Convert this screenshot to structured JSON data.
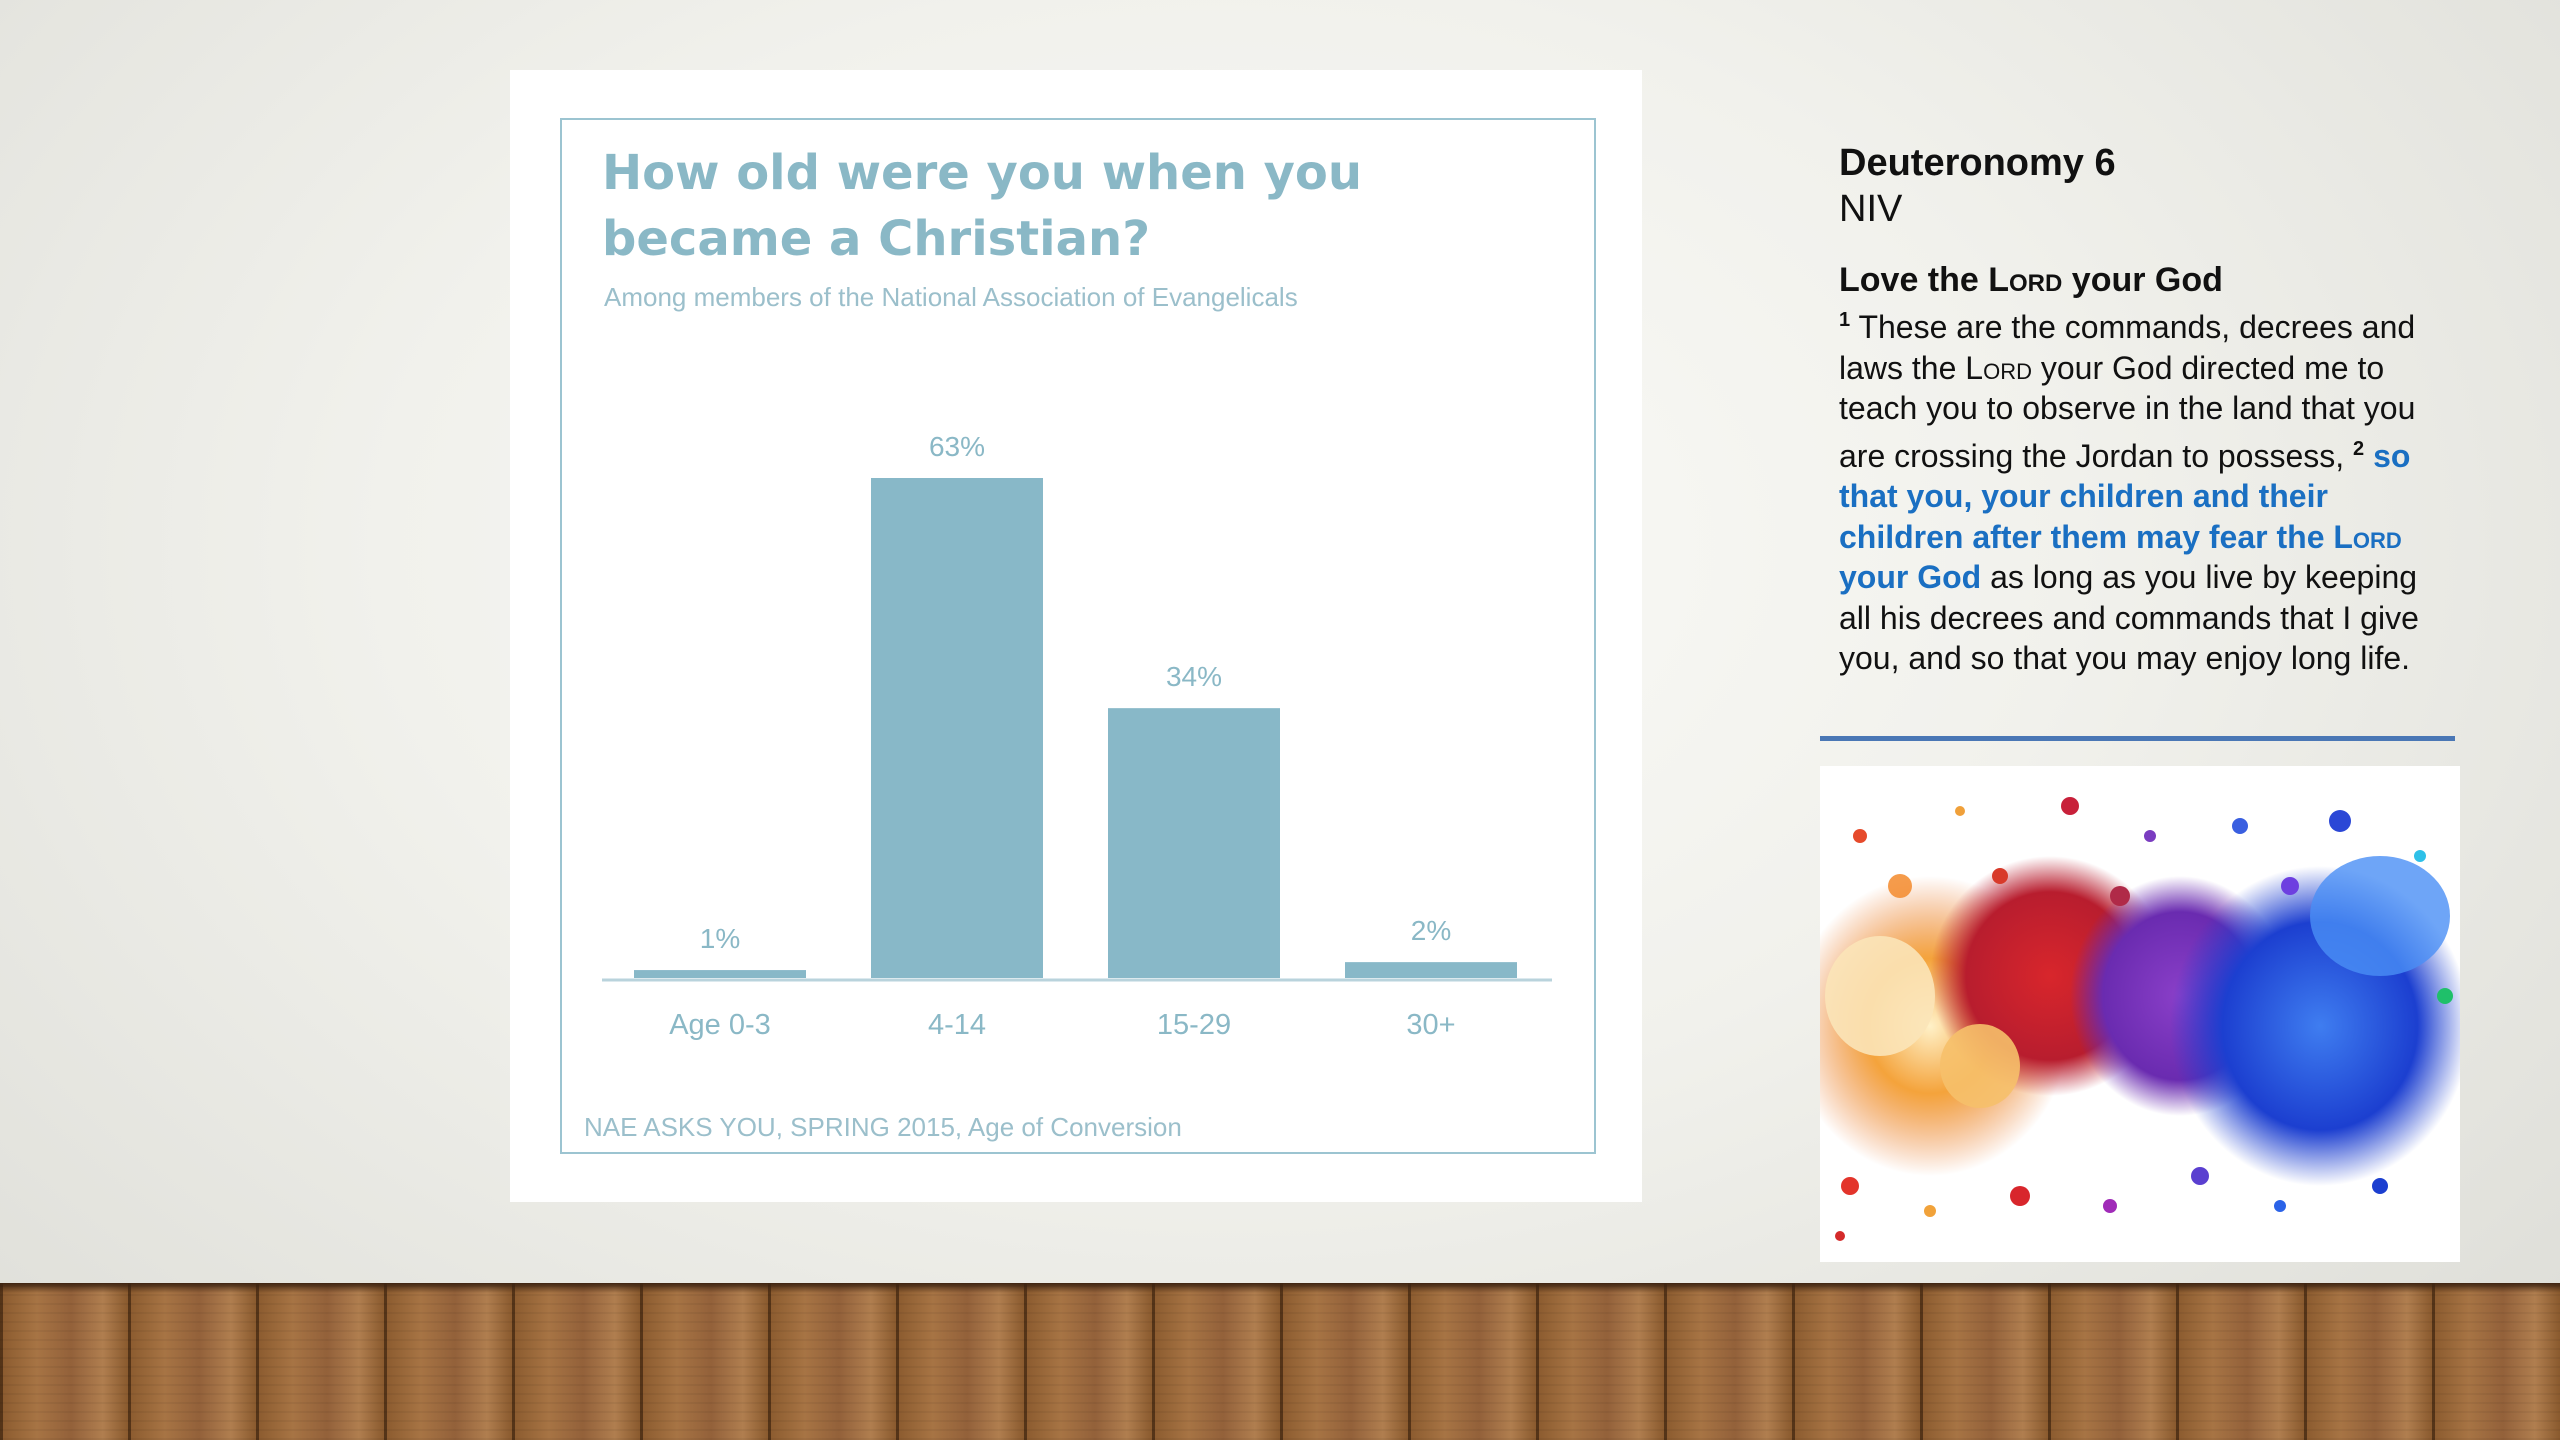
{
  "chart_data": {
    "type": "bar",
    "title": "How old were you when you became a Christian?",
    "subtitle": "Among members of the National Association of Evangelicals",
    "source": "NAE ASKS YOU, SPRING 2015, Age of Conversion",
    "categories": [
      "Age 0-3",
      "4-14",
      "15-29",
      "30+"
    ],
    "values": [
      1,
      63,
      34,
      2
    ],
    "value_labels": [
      "1%",
      "63%",
      "34%",
      "2%"
    ],
    "unit": "%",
    "ylim": [
      0,
      63
    ],
    "grid": false,
    "legend": "none",
    "bar_color": "#88b8c8",
    "text_color": "#8ab8c6"
  },
  "scripture": {
    "book": "Deuteronomy 6",
    "version": "NIV",
    "heading_pre": "Love the ",
    "heading_lord": "Lord",
    "heading_post": " your God",
    "v1_num": "1",
    "v1_a": "These are the commands, decrees and laws the ",
    "v1_lord": "Lord",
    "v1_b": " your God directed me to teach you to observe in the land that you are crossing the Jordan to possess, ",
    "v2_num": "2",
    "v2_hl_a": "so that you, your children and their children after them may fear the ",
    "v2_hl_lord": "Lord",
    "v2_hl_b": " your God",
    "v2_rest": " as long as you live by keeping all his decrees and commands that I give you, and so that you may enjoy long life."
  },
  "colors": {
    "accent_blue": "#1a6fc2",
    "divider": "#4a77b5"
  },
  "decor": {
    "image_icon": "paint-splash-image",
    "floor_icon": "wood-floor"
  }
}
